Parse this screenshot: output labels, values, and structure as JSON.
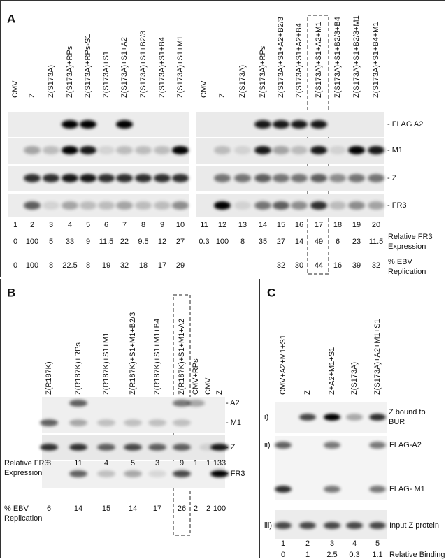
{
  "panel_a": {
    "letter": "A",
    "lanes": [
      "CMV",
      "Z",
      "Z(S173A)",
      "Z(S173A)+RPs",
      "Z(S173A)+RPs-S1",
      "Z(S173A)+S1",
      "Z(S173A)+S1+A2",
      "Z(S173A)+S1+B2/3",
      "Z(S173A)+S1+B4",
      "Z(S173A)+S1+M1",
      "CMV",
      "Z",
      "Z(S173A)",
      "Z(S173A)+RPs",
      "Z(S173A)+S1+A2+B2/3",
      "Z(S173A)+S1+A2+B4",
      "Z(S173A)+S1+A2+M1",
      "Z(S173A)+S1+B2/3+B4",
      "Z(S173A)+S1+B2/3+M1",
      "Z(S173A)+S1+B4+M1"
    ],
    "lane_numbers": [
      1,
      2,
      3,
      4,
      5,
      6,
      7,
      8,
      9,
      10,
      11,
      12,
      13,
      14,
      15,
      16,
      17,
      18,
      19,
      20
    ],
    "relative_fr3": [
      0,
      100,
      5,
      33,
      9,
      11.5,
      22,
      9.5,
      12,
      27,
      0.3,
      100,
      8,
      35,
      27,
      14,
      49,
      6,
      23,
      11.5
    ],
    "ebv_replication": [
      0,
      100,
      8,
      22.5,
      8,
      19,
      32,
      18,
      17,
      29,
      null,
      null,
      null,
      null,
      32,
      30,
      44,
      16,
      39,
      32
    ],
    "row_labels": [
      "- FLAG A2",
      "- M1",
      "- Z",
      "- FR3"
    ],
    "relative_fr3_label": "Relative FR3 Expression",
    "ebv_label": "% EBV Replication"
  },
  "panel_b": {
    "letter": "B",
    "lanes": [
      "Z(R187K)",
      "Z(R187K)+RPs",
      "Z(R187K)+S1+M1",
      "Z(R187K)+S1+M1+B2/3",
      "Z(R187K)+S1+M1+B4",
      "Z(R187K)+S1+M1+A2",
      "CMV+RPs",
      "CMV",
      "Z"
    ],
    "relative_fr3": [
      3,
      11,
      4,
      5,
      3,
      9,
      1,
      1,
      133
    ],
    "ebv_replication": [
      6,
      14,
      15,
      14,
      17,
      26,
      2,
      2,
      100
    ],
    "row_labels": [
      "- A2",
      "- M1",
      "- Z",
      "- FR3"
    ],
    "relative_fr3_label": "Relative FR3 Expression",
    "ebv_label": "% EBV Replication"
  },
  "panel_c": {
    "letter": "C",
    "lanes": [
      "CMV+A2+M1+S1",
      "Z",
      "Z+A2+M1+S1",
      "Z(S173A)",
      "Z(S173A)+A2+M1+S1"
    ],
    "lane_numbers": [
      1,
      2,
      3,
      4,
      5
    ],
    "relative_binding": [
      0,
      1,
      2.5,
      0.3,
      1.1
    ],
    "row_markers": [
      "i)",
      "ii)",
      "iii)"
    ],
    "row_labels": [
      "Z bound to BUR",
      "FLAG-A2",
      "FLAG- M1",
      "Input Z protein"
    ],
    "relative_binding_label": "Relative Binding"
  }
}
